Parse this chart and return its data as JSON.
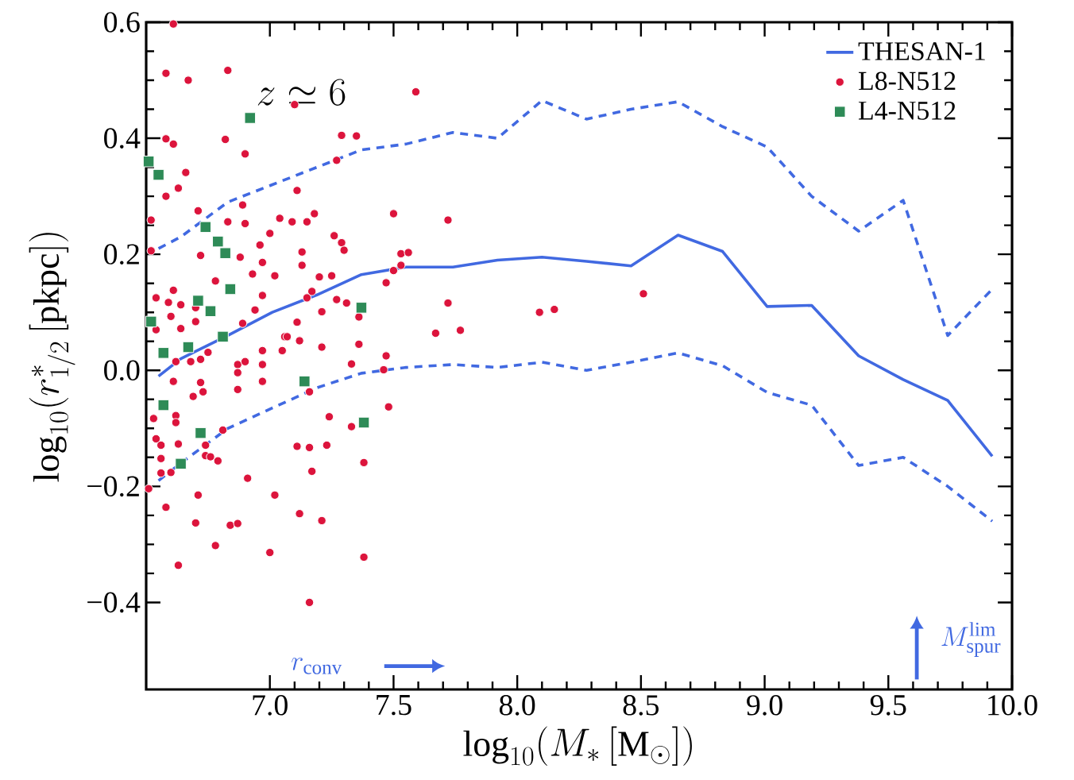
{
  "chart_data": {
    "type": "scatter",
    "xlabel": "\\log_{10}(M_*\\,[\\mathrm{M}_\\odot])",
    "ylabel": "\\log_{10}(r^*_{1/2}\\,[\\mathrm{pkpc}])",
    "annotations": [
      "z\\simeq 6",
      "r_{\\rm conv}",
      "M^{\\rm lim}_{\\rm spur}"
    ],
    "xlim": [
      6.5,
      10.0
    ],
    "ylim": [
      -0.55,
      0.6
    ],
    "xticks": [
      {
        "value": 7.0,
        "label": "7.0"
      },
      {
        "value": 7.5,
        "label": "7.5"
      },
      {
        "value": 8.0,
        "label": "8.0"
      },
      {
        "value": 8.5,
        "label": "8.5"
      },
      {
        "value": 9.0,
        "label": "9.0"
      },
      {
        "value": 9.5,
        "label": "9.5"
      },
      {
        "value": 10.0,
        "label": "10.0"
      }
    ],
    "yticks": [
      {
        "value": -0.4,
        "label": "−0.4"
      },
      {
        "value": -0.2,
        "label": "−0.2"
      },
      {
        "value": 0.0,
        "label": "0.0"
      },
      {
        "value": 0.2,
        "label": "0.2"
      },
      {
        "value": 0.4,
        "label": "0.4"
      },
      {
        "value": 0.6,
        "label": "0.6"
      }
    ],
    "legend": "top right",
    "series": [
      {
        "name": "THESAN-1",
        "type": "line",
        "color": "#4169e1",
        "line_style": "solid",
        "marker": "none",
        "x": [
          6.55,
          6.64,
          6.83,
          7.01,
          7.19,
          7.37,
          7.55,
          7.74,
          7.92,
          8.1,
          8.28,
          8.46,
          8.65,
          8.83,
          9.01,
          9.19,
          9.38,
          9.56,
          9.74,
          9.92
        ],
        "values": [
          -0.01,
          0.02,
          0.06,
          0.1,
          0.13,
          0.165,
          0.178,
          0.178,
          0.19,
          0.195,
          0.188,
          0.18,
          0.233,
          0.205,
          0.11,
          0.112,
          0.025,
          -0.016,
          -0.052,
          -0.148
        ]
      },
      {
        "type": "line",
        "color": "#4169e1",
        "line_style": "dashed",
        "marker": "none",
        "x": [
          6.55,
          6.64,
          6.83,
          7.01,
          7.19,
          7.37,
          7.55,
          7.74,
          7.92,
          8.1,
          8.28,
          8.46,
          8.65,
          8.83,
          9.01,
          9.19,
          9.38,
          9.56,
          9.74,
          9.92
        ],
        "values": [
          0.21,
          0.23,
          0.29,
          0.32,
          0.35,
          0.38,
          0.39,
          0.41,
          0.4,
          0.465,
          0.433,
          0.45,
          0.463,
          0.42,
          0.385,
          0.3,
          0.24,
          0.293,
          0.06,
          0.14
        ]
      },
      {
        "type": "line",
        "color": "#4169e1",
        "line_style": "dashed",
        "marker": "none",
        "x": [
          6.55,
          6.64,
          6.83,
          7.01,
          7.19,
          7.37,
          7.55,
          7.74,
          7.92,
          8.1,
          8.28,
          8.46,
          8.65,
          8.83,
          9.01,
          9.19,
          9.38,
          9.56,
          9.74,
          9.92
        ],
        "values": [
          -0.19,
          -0.16,
          -0.1,
          -0.065,
          -0.03,
          -0.005,
          0.005,
          0.01,
          0.005,
          0.014,
          0.0,
          0.014,
          0.03,
          0.008,
          -0.038,
          -0.06,
          -0.164,
          -0.15,
          -0.2,
          -0.26
        ]
      },
      {
        "name": "L8-N512",
        "color": "#dc143c",
        "marker": "circle",
        "x": [
          6.61,
          6.58,
          6.67,
          6.83,
          7.1,
          7.59,
          6.58,
          6.61,
          6.82,
          6.9,
          7.29,
          7.35,
          7.27,
          6.66,
          6.63,
          6.58,
          7.11,
          6.89,
          6.71,
          7.5,
          7.72,
          6.52,
          6.83,
          6.9,
          7.04,
          7.09,
          7.15,
          7.18,
          7.0,
          7.26,
          7.29,
          7.3,
          6.52,
          6.72,
          6.88,
          6.96,
          6.97,
          7.13,
          7.13,
          7.53,
          7.56,
          7.5,
          7.53,
          6.93,
          7.02,
          7.2,
          7.25,
          7.47,
          6.78,
          6.54,
          6.61,
          6.59,
          6.64,
          6.97,
          7.17,
          7.15,
          7.21,
          7.27,
          7.31,
          7.36,
          7.72,
          6.7,
          6.6,
          6.7,
          6.94,
          6.64,
          6.89,
          7.06,
          7.11,
          7.67,
          7.77,
          6.54,
          6.75,
          6.62,
          6.68,
          6.72,
          6.87,
          6.9,
          6.97,
          6.97,
          7.05,
          7.07,
          7.12,
          7.21,
          7.36,
          7.47,
          7.33,
          7.46,
          6.87,
          6.97,
          6.61,
          6.72,
          6.73,
          6.69,
          6.87,
          7.16,
          7.24,
          7.48,
          7.33,
          6.53,
          6.62,
          6.62,
          6.54,
          6.56,
          6.63,
          6.74,
          6.81,
          6.74,
          6.79,
          6.76,
          6.56,
          7.11,
          7.16,
          7.23,
          7.17,
          7.38,
          6.56,
          6.6,
          6.91,
          6.51,
          6.71,
          7.02,
          6.58,
          7.12,
          7.21,
          6.7,
          6.84,
          6.87,
          6.78,
          7.0,
          7.38,
          6.63,
          7.16,
          8.09,
          8.15,
          8.51
        ],
        "values": [
          0.597,
          0.512,
          0.5,
          0.517,
          0.458,
          0.48,
          0.399,
          0.39,
          0.398,
          0.373,
          0.405,
          0.404,
          0.362,
          0.341,
          0.314,
          0.3,
          0.31,
          0.285,
          0.275,
          0.27,
          0.259,
          0.259,
          0.256,
          0.253,
          0.262,
          0.256,
          0.256,
          0.27,
          0.236,
          0.232,
          0.22,
          0.207,
          0.206,
          0.198,
          0.195,
          0.216,
          0.186,
          0.204,
          0.181,
          0.201,
          0.203,
          0.172,
          0.181,
          0.166,
          0.163,
          0.161,
          0.163,
          0.151,
          0.154,
          0.125,
          0.138,
          0.117,
          0.113,
          0.129,
          0.136,
          0.125,
          0.101,
          0.122,
          0.116,
          0.092,
          0.116,
          0.108,
          0.093,
          0.084,
          0.104,
          0.072,
          0.081,
          0.058,
          0.083,
          0.064,
          0.069,
          0.07,
          0.031,
          0.015,
          0.015,
          0.019,
          0.01,
          0.015,
          0.034,
          0.01,
          0.034,
          0.058,
          0.051,
          0.04,
          0.045,
          0.025,
          0.011,
          0.001,
          -0.004,
          -0.019,
          -0.019,
          -0.021,
          -0.037,
          -0.045,
          -0.033,
          -0.037,
          -0.08,
          -0.063,
          -0.097,
          -0.083,
          -0.078,
          -0.09,
          -0.118,
          -0.129,
          -0.127,
          -0.129,
          -0.103,
          -0.147,
          -0.156,
          -0.149,
          -0.152,
          -0.131,
          -0.133,
          -0.129,
          -0.174,
          -0.159,
          -0.177,
          -0.176,
          -0.186,
          -0.204,
          -0.215,
          -0.215,
          -0.236,
          -0.247,
          -0.259,
          -0.263,
          -0.267,
          -0.264,
          -0.302,
          -0.314,
          -0.322,
          -0.336,
          -0.4,
          0.1,
          0.105,
          0.132
        ]
      },
      {
        "name": "L4-N512",
        "color": "#2e8b57",
        "marker": "square",
        "x": [
          6.92,
          6.55,
          6.51,
          6.74,
          6.79,
          6.82,
          6.84,
          6.71,
          6.76,
          7.37,
          6.81,
          6.52,
          6.67,
          6.57,
          7.14,
          6.57,
          6.72,
          7.38,
          6.64
        ],
        "values": [
          0.435,
          0.337,
          0.36,
          0.247,
          0.222,
          0.202,
          0.14,
          0.12,
          0.102,
          0.108,
          0.058,
          0.084,
          0.04,
          0.03,
          -0.019,
          -0.06,
          -0.108,
          -0.09,
          -0.161
        ]
      }
    ]
  }
}
